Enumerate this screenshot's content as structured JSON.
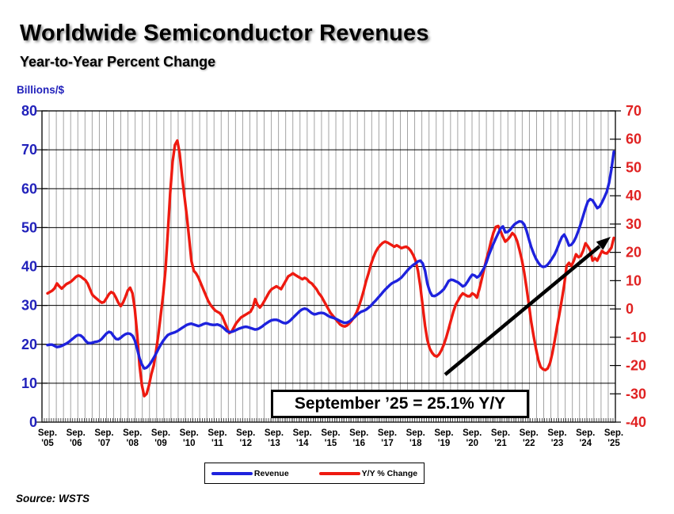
{
  "header": {
    "title": "Worldwide Semiconductor Revenues",
    "subtitle": "Year-to-Year Percent Change"
  },
  "left_axis": {
    "title": "Billions/$",
    "label_color": "#2222bb"
  },
  "right_axis": {
    "label_color": "#e02222"
  },
  "legend": {
    "items": [
      {
        "label": "Revenue",
        "color": "#1e22dd"
      },
      {
        "label": "Y/Y % Change",
        "color": "#ee1a10"
      }
    ]
  },
  "annotation": {
    "text": "September ’25 = 25.1% Y/Y"
  },
  "source": "Source: WSTS",
  "chart_data": {
    "type": "line",
    "title": "Worldwide Semiconductor Revenues",
    "subtitle": "Year-to-Year Percent Change",
    "x_frequency": "monthly",
    "x_start": "2005-09",
    "x_end": "2025-09",
    "grid": "vertical quarterly gray lines; horizontal black lines every 10 left-axis units",
    "legend_position": "bottom-center",
    "left_axis": {
      "label": "Billions/$",
      "ylim": [
        0,
        80
      ],
      "ticks": [
        80,
        70,
        60,
        50,
        40,
        30,
        20,
        10,
        0
      ]
    },
    "right_axis": {
      "label": "Y/Y % Change",
      "ylim": [
        -40,
        70
      ],
      "ticks": [
        70,
        60,
        50,
        40,
        30,
        20,
        10,
        0,
        -10,
        -20,
        -30,
        -40
      ]
    },
    "x_ticks": [
      {
        "m": "Sep.",
        "y": "'05"
      },
      {
        "m": "Sep.",
        "y": "'06"
      },
      {
        "m": "Sep.",
        "y": "'07"
      },
      {
        "m": "Sep.",
        "y": "'08"
      },
      {
        "m": "Sep.",
        "y": "'09"
      },
      {
        "m": "Sep.",
        "y": "'10"
      },
      {
        "m": "Sep.",
        "y": "'11"
      },
      {
        "m": "Sep.",
        "y": "'12"
      },
      {
        "m": "Sep.",
        "y": "'13"
      },
      {
        "m": "Sep.",
        "y": "'14"
      },
      {
        "m": "Sep.",
        "y": "'15"
      },
      {
        "m": "Sep.",
        "y": "'16"
      },
      {
        "m": "Sep.",
        "y": "'17"
      },
      {
        "m": "Sep.",
        "y": "'18"
      },
      {
        "m": "Sep.",
        "y": "'19"
      },
      {
        "m": "Sep.",
        "y": "'20"
      },
      {
        "m": "Sep.",
        "y": "'21"
      },
      {
        "m": "Sep.",
        "y": "'22"
      },
      {
        "m": "Sep.",
        "y": "'23"
      },
      {
        "m": "Sep.",
        "y": "'24"
      },
      {
        "m": "Sep.",
        "y": "'25"
      }
    ],
    "series": [
      {
        "name": "Revenue",
        "axis": "left",
        "units": "$B, 3-month average",
        "color": "#1e22dd",
        "values": [
          19.8,
          19.9,
          19.9,
          19.6,
          19.3,
          19.4,
          19.6,
          19.9,
          20.2,
          20.6,
          21.1,
          21.6,
          22.1,
          22.4,
          22.3,
          21.8,
          21.0,
          20.4,
          20.3,
          20.4,
          20.6,
          20.7,
          20.9,
          21.4,
          22.1,
          22.8,
          23.2,
          23.0,
          22.1,
          21.4,
          21.3,
          21.7,
          22.2,
          22.6,
          22.8,
          22.7,
          22.2,
          21.0,
          18.8,
          16.4,
          14.8,
          13.8,
          14.0,
          14.6,
          15.5,
          16.5,
          17.6,
          18.8,
          19.9,
          20.9,
          21.7,
          22.4,
          22.7,
          22.9,
          23.1,
          23.4,
          23.8,
          24.2,
          24.6,
          25.0,
          25.2,
          25.3,
          25.1,
          24.9,
          24.7,
          24.9,
          25.2,
          25.4,
          25.3,
          25.1,
          25.0,
          25.0,
          25.1,
          24.9,
          24.5,
          24.0,
          23.4,
          23.1,
          23.2,
          23.4,
          23.7,
          24.0,
          24.2,
          24.4,
          24.5,
          24.4,
          24.2,
          24.0,
          23.8,
          23.9,
          24.2,
          24.6,
          25.1,
          25.5,
          25.9,
          26.2,
          26.3,
          26.3,
          26.1,
          25.8,
          25.5,
          25.4,
          25.7,
          26.2,
          26.8,
          27.4,
          28.0,
          28.6,
          29.0,
          29.2,
          29.0,
          28.5,
          28.0,
          27.7,
          27.8,
          28.0,
          28.1,
          28.0,
          27.7,
          27.3,
          27.0,
          26.8,
          26.6,
          26.3,
          26.0,
          25.7,
          25.5,
          25.6,
          25.9,
          26.4,
          26.9,
          27.5,
          28.0,
          28.4,
          28.6,
          28.9,
          29.4,
          29.9,
          30.6,
          31.2,
          31.9,
          32.6,
          33.3,
          34.0,
          34.6,
          35.2,
          35.7,
          36.0,
          36.3,
          36.7,
          37.2,
          37.9,
          38.6,
          39.3,
          39.9,
          40.4,
          40.8,
          41.3,
          41.5,
          40.8,
          38.9,
          35.6,
          33.6,
          32.5,
          32.4,
          32.7,
          33.1,
          33.6,
          34.2,
          35.2,
          36.3,
          36.6,
          36.5,
          36.2,
          35.9,
          35.4,
          34.9,
          35.2,
          36.1,
          37.1,
          37.9,
          37.7,
          37.2,
          37.6,
          38.6,
          39.6,
          41.0,
          42.9,
          44.4,
          45.9,
          47.2,
          48.5,
          49.8,
          50.3,
          48.8,
          48.9,
          49.4,
          50.2,
          50.9,
          51.3,
          51.6,
          51.5,
          50.8,
          49.2,
          47.0,
          45.0,
          43.4,
          42.0,
          41.0,
          40.2,
          39.9,
          40.0,
          40.5,
          41.3,
          42.2,
          43.2,
          44.6,
          46.2,
          47.6,
          48.2,
          47.0,
          45.4,
          45.6,
          46.4,
          47.6,
          49.2,
          51.0,
          53.0,
          55.0,
          56.7,
          57.3,
          57.0,
          56.0,
          55.0,
          55.4,
          56.5,
          57.8,
          59.2,
          61.5,
          65.0,
          69.5
        ]
      },
      {
        "name": "Y/Y % Change",
        "axis": "right",
        "units": "%",
        "color": "#ee1a10",
        "values": [
          5.5,
          6.0,
          6.5,
          7.3,
          9.0,
          8.0,
          7.2,
          8.0,
          8.8,
          9.2,
          9.7,
          10.5,
          11.3,
          11.8,
          11.5,
          10.8,
          10.2,
          9.0,
          7.0,
          5.0,
          4.2,
          3.5,
          2.8,
          2.2,
          2.5,
          3.8,
          5.2,
          6.0,
          5.5,
          4.0,
          2.2,
          1.0,
          2.2,
          4.2,
          6.5,
          7.5,
          5.5,
          0.0,
          -9.0,
          -20.0,
          -27.0,
          -30.8,
          -30.0,
          -27.0,
          -23.0,
          -20.0,
          -15.0,
          -9.0,
          -2.0,
          5.0,
          14.0,
          27.0,
          41.0,
          52.0,
          58.0,
          59.5,
          55.0,
          47.0,
          40.0,
          33.0,
          25.0,
          17.0,
          13.5,
          12.5,
          11.0,
          9.0,
          7.0,
          5.0,
          3.0,
          1.5,
          0.5,
          -0.5,
          -1.0,
          -1.5,
          -2.5,
          -4.5,
          -6.5,
          -8.5,
          -8.0,
          -6.5,
          -5.0,
          -4.0,
          -3.0,
          -2.5,
          -2.0,
          -1.5,
          -1.0,
          0.5,
          3.5,
          1.5,
          0.5,
          1.5,
          3.0,
          4.5,
          6.0,
          7.0,
          7.5,
          8.0,
          7.5,
          7.0,
          8.5,
          10.0,
          11.5,
          12.0,
          12.6,
          12.0,
          11.5,
          11.0,
          10.5,
          11.0,
          10.5,
          9.5,
          9.0,
          8.0,
          7.0,
          5.5,
          4.5,
          3.0,
          1.5,
          0.0,
          -1.5,
          -2.5,
          -3.5,
          -4.5,
          -5.5,
          -6.0,
          -6.2,
          -5.8,
          -5.0,
          -4.0,
          -2.8,
          -1.2,
          1.0,
          3.5,
          6.5,
          9.8,
          12.5,
          15.5,
          18.0,
          20.0,
          21.5,
          22.5,
          23.3,
          23.8,
          23.5,
          23.0,
          22.5,
          22.0,
          22.5,
          22.0,
          21.5,
          21.8,
          22.0,
          21.5,
          20.5,
          19.0,
          17.0,
          13.5,
          8.0,
          1.0,
          -6.0,
          -11.0,
          -14.0,
          -15.5,
          -16.5,
          -16.8,
          -16.0,
          -14.5,
          -12.5,
          -10.0,
          -7.0,
          -4.0,
          -1.0,
          1.5,
          3.0,
          4.5,
          5.5,
          5.0,
          4.5,
          4.5,
          5.5,
          5.0,
          4.0,
          7.0,
          10.5,
          14.0,
          17.5,
          20.5,
          24.0,
          27.0,
          29.0,
          29.3,
          27.5,
          25.5,
          23.8,
          24.5,
          25.5,
          26.8,
          26.0,
          24.0,
          21.0,
          17.5,
          13.0,
          7.5,
          1.5,
          -4.5,
          -9.5,
          -14.0,
          -18.0,
          -20.5,
          -21.3,
          -21.6,
          -21.0,
          -19.0,
          -15.5,
          -11.0,
          -6.0,
          -1.5,
          3.5,
          8.5,
          15.2,
          16.3,
          15.2,
          17.0,
          19.3,
          18.3,
          18.7,
          20.6,
          23.2,
          22.1,
          20.7,
          17.1,
          17.9,
          17.1,
          18.8,
          20.5,
          19.8,
          19.6,
          20.5,
          21.7,
          25.1
        ]
      }
    ],
    "annotations": [
      {
        "text": "September ’25 = 25.1% Y/Y",
        "arrow_points_to": "Sep 2025 Y/Y % Change endpoint (25.1%)"
      }
    ]
  }
}
